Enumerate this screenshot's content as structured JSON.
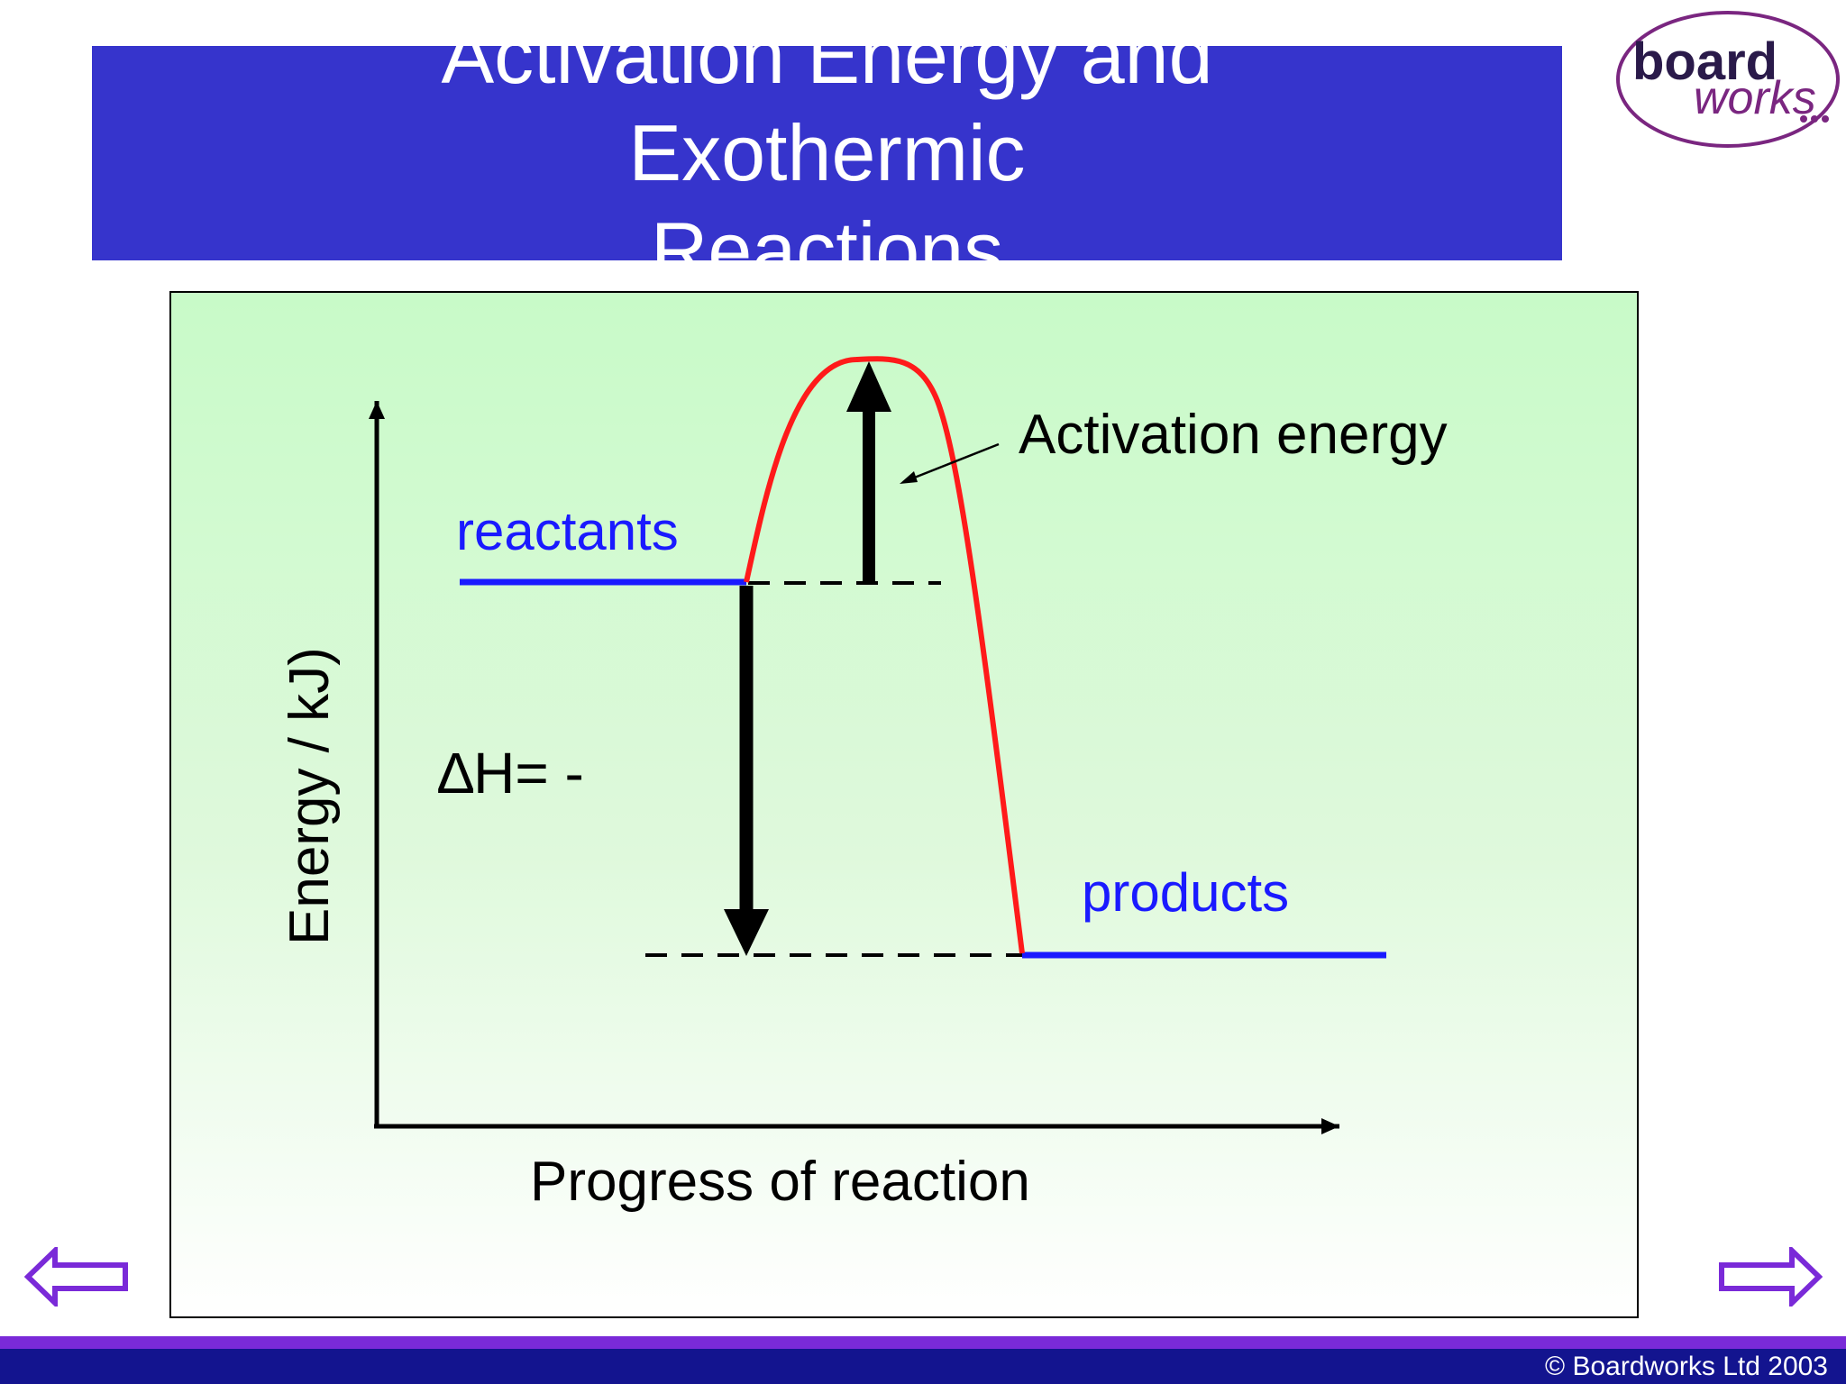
{
  "title": "Activation Energy and Exothermic\nReactions",
  "logo": {
    "top": "board",
    "bottom": "works"
  },
  "diagram": {
    "y_axis_label": "Energy / kJ)",
    "x_axis_label": "Progress of reaction",
    "reactants_label": "reactants",
    "products_label": "products",
    "activation_label": "Activation energy",
    "delta_h_label": "∆H= -"
  },
  "colors": {
    "banner": "#3634cc",
    "curve": "#ff1a1a",
    "levels": "#1a1aff",
    "footer": "#13148f",
    "nav": "#7a2ad8"
  },
  "nav": {
    "prev": "left-arrow-icon",
    "next": "right-arrow-icon"
  },
  "footer": {
    "copyright": "© Boardworks Ltd 2003"
  }
}
